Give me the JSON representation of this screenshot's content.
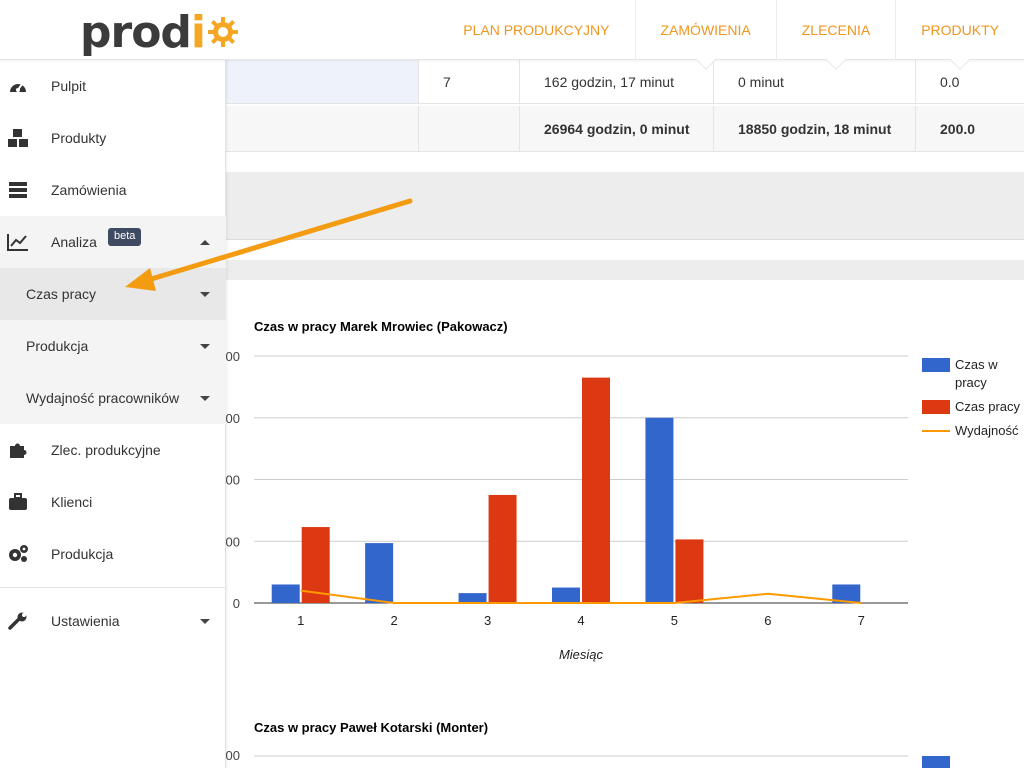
{
  "header": {
    "logo": {
      "text_main": "prod",
      "text_accent": "i"
    },
    "nav": [
      {
        "label": "PLAN PRODUKCYJNY"
      },
      {
        "label": "ZAMÓWIENIA"
      },
      {
        "label": "ZLECENIA"
      },
      {
        "label": "PRODUKTY"
      }
    ]
  },
  "sidebar": {
    "items": [
      {
        "label": "Pulpit",
        "icon": "dashboard-icon"
      },
      {
        "label": "Produkty",
        "icon": "cubes-icon"
      },
      {
        "label": "Zamówienia",
        "icon": "server-icon"
      },
      {
        "label": "Analiza",
        "icon": "line-chart-icon",
        "badge": "beta"
      },
      {
        "label": "Czas pracy"
      },
      {
        "label": "Produkcja"
      },
      {
        "label": "Wydajność pracowników"
      },
      {
        "label": "Zlec. produkcyjne",
        "icon": "puzzle-icon"
      },
      {
        "label": "Klienci",
        "icon": "briefcase-icon"
      },
      {
        "label": "Produkcja",
        "icon": "gears-icon"
      },
      {
        "label": "Ustawienia",
        "icon": "wrench-icon"
      }
    ]
  },
  "table": {
    "row1": [
      "",
      "7",
      "162 godzin, 17 minut",
      "0 minut",
      "0.0"
    ],
    "row2": [
      "",
      "",
      "26964 godzin, 0 minut",
      "18850 godzin, 18 minut",
      "200.0"
    ]
  },
  "charts": [
    {
      "title": "Czas w pracy Marek Mrowiec (Pakowacz)"
    },
    {
      "title": "Czas w pracy Paweł Kotarski (Monter)"
    }
  ],
  "chart_data": [
    {
      "type": "bar",
      "title": "Czas w pracy Marek Mrowiec (Pakowacz)",
      "xlabel": "Miesiąc",
      "ylabel": "",
      "categories": [
        "1",
        "2",
        "3",
        "4",
        "5",
        "6",
        "7"
      ],
      "y_tick_labels": [
        "00",
        "00",
        "00",
        "00",
        "0"
      ],
      "ylim": [
        0,
        400
      ],
      "series": [
        {
          "name": "Czas w pracy",
          "type": "bar",
          "color": "#3366cc",
          "values": [
            30,
            97,
            16,
            25,
            300,
            0,
            30
          ]
        },
        {
          "name": "Czas pracy",
          "type": "bar",
          "color": "#dc3912",
          "values": [
            123,
            0,
            175,
            365,
            103,
            0,
            0
          ]
        },
        {
          "name": "Wydajność",
          "type": "line",
          "color": "#ff9900",
          "values": [
            20,
            0,
            0,
            0,
            0,
            15,
            0
          ]
        }
      ],
      "grid": true,
      "legend": "right"
    },
    {
      "type": "bar",
      "title": "Czas w pracy Paweł Kotarski (Monter)",
      "y_tick_labels": [
        "00"
      ]
    }
  ]
}
